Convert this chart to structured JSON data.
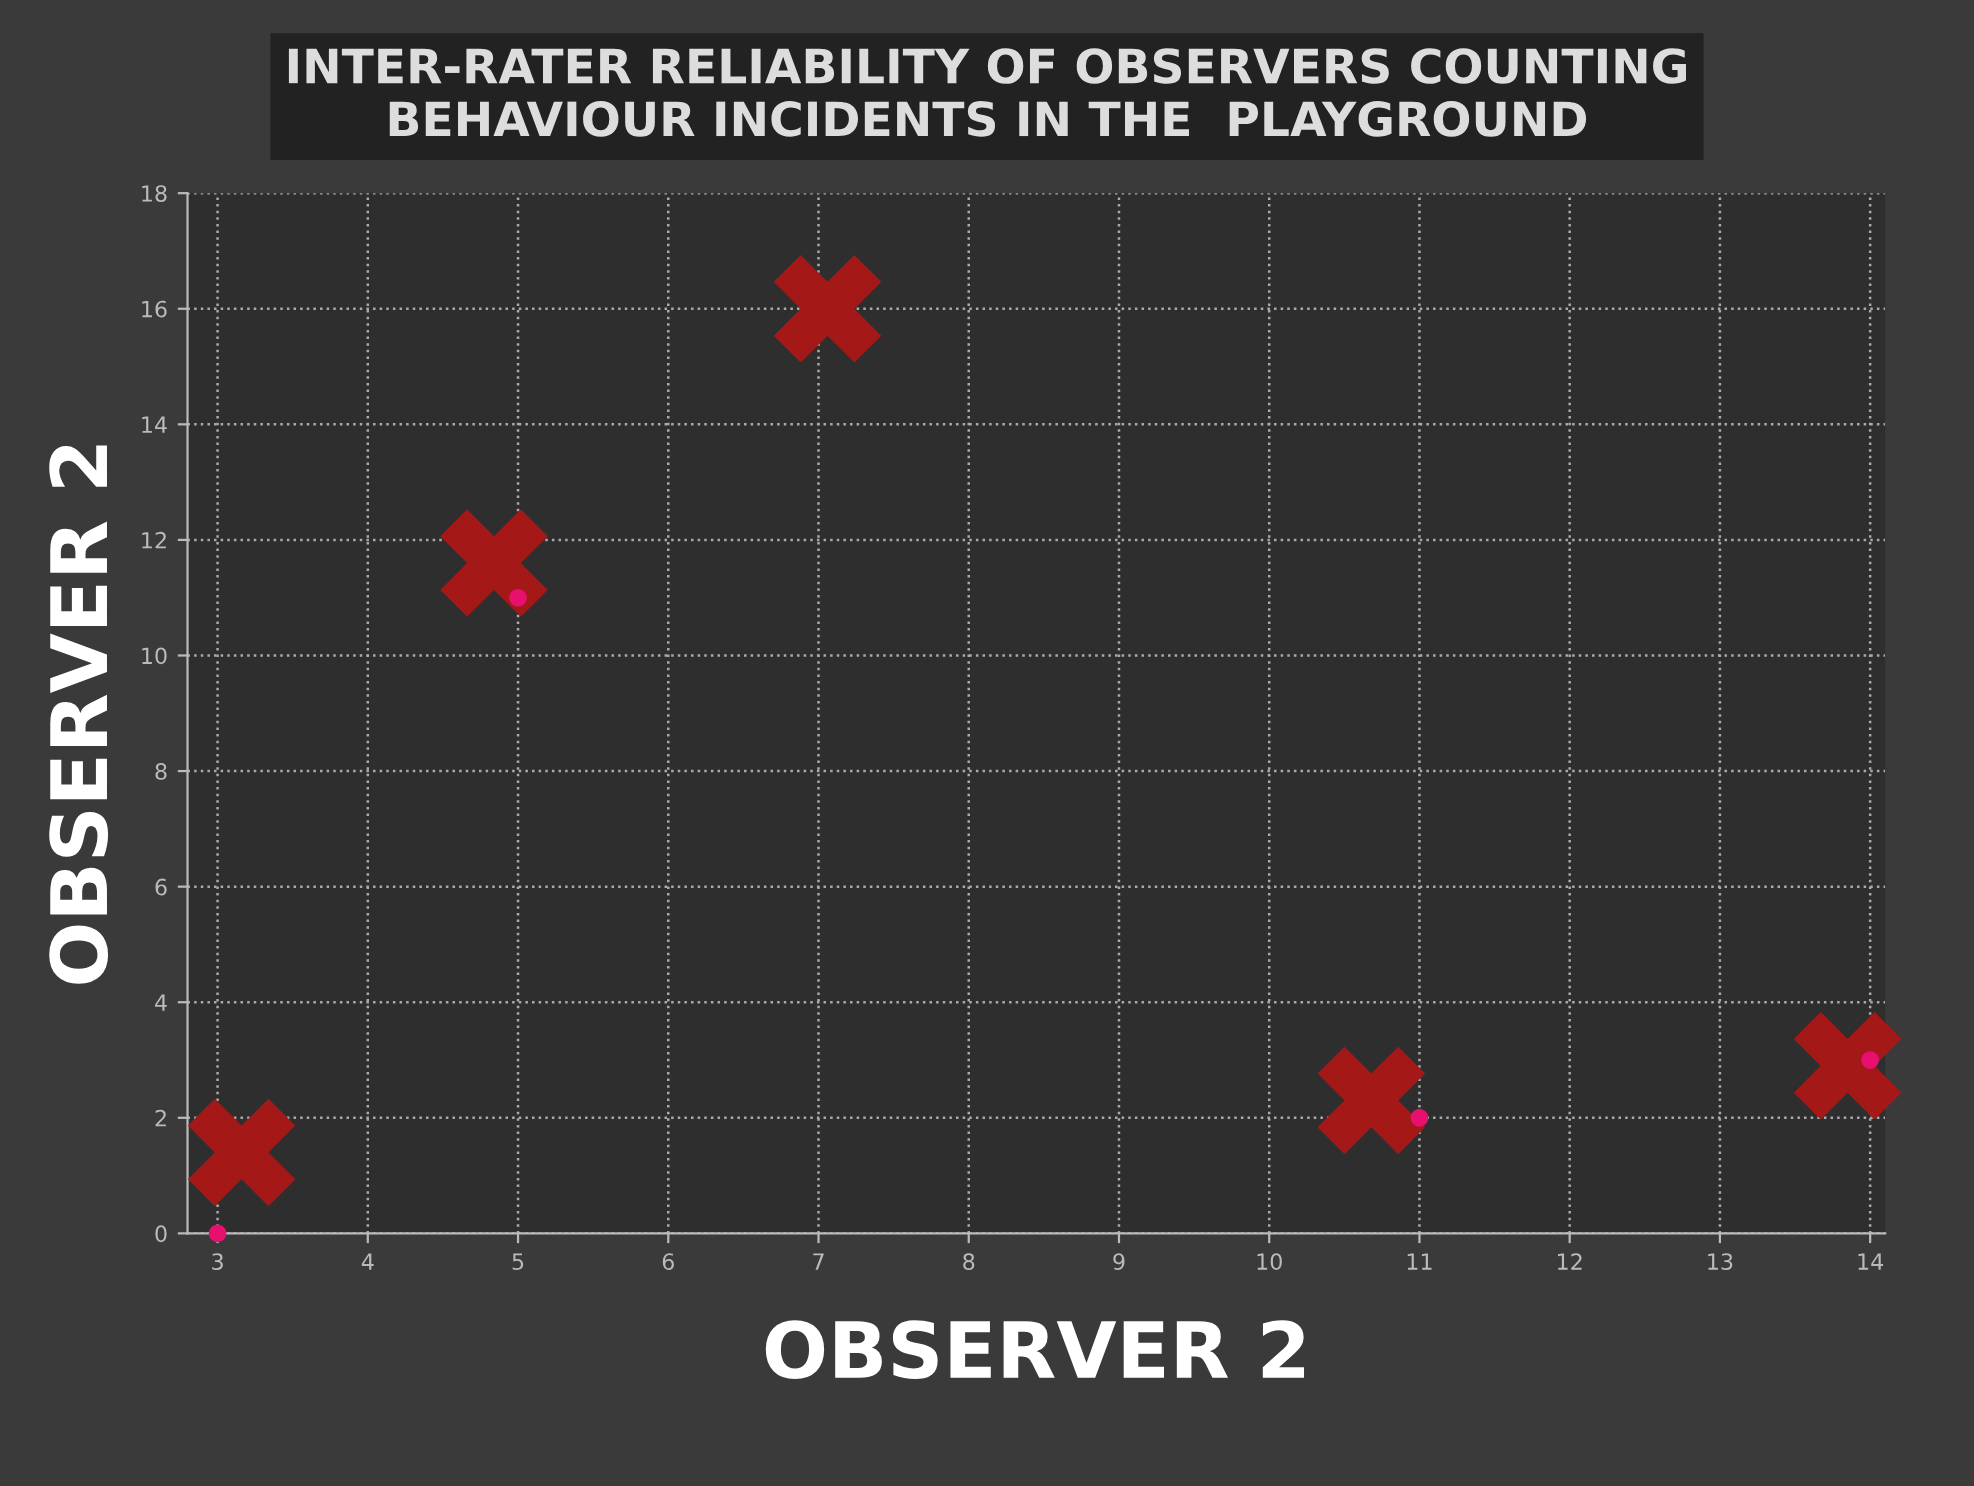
{
  "chart_data": {
    "type": "scatter",
    "title": "INTER-RATER RELIABILITY OF OBSERVERS COUNTING\nBEHAVIOUR INCIDENTS IN THE  PLAYGROUND",
    "xlabel": "OBSERVER 2",
    "ylabel": "OBSERVER 2",
    "series": [
      {
        "color": "#e8106e",
        "marker": "circle",
        "x": [
          3,
          5,
          7,
          11,
          14
        ],
        "values": [
          0,
          11,
          null,
          2,
          3
        ]
      },
      {
        "color": "#a51818",
        "marker": "cross",
        "x": [
          3.16,
          4.84,
          7.06,
          10.68,
          13.85
        ],
        "values": [
          1.4,
          11.6,
          16.0,
          2.3,
          2.9
        ]
      }
    ],
    "xlim": [
      2.8,
      14.1
    ],
    "ylim": [
      0,
      18
    ],
    "xticks": [
      3,
      4,
      5,
      6,
      7,
      8,
      9,
      10,
      11,
      12,
      13,
      14
    ],
    "yticks": [
      0,
      2,
      4,
      6,
      8,
      10,
      12,
      14,
      16,
      18
    ],
    "grid": true
  }
}
